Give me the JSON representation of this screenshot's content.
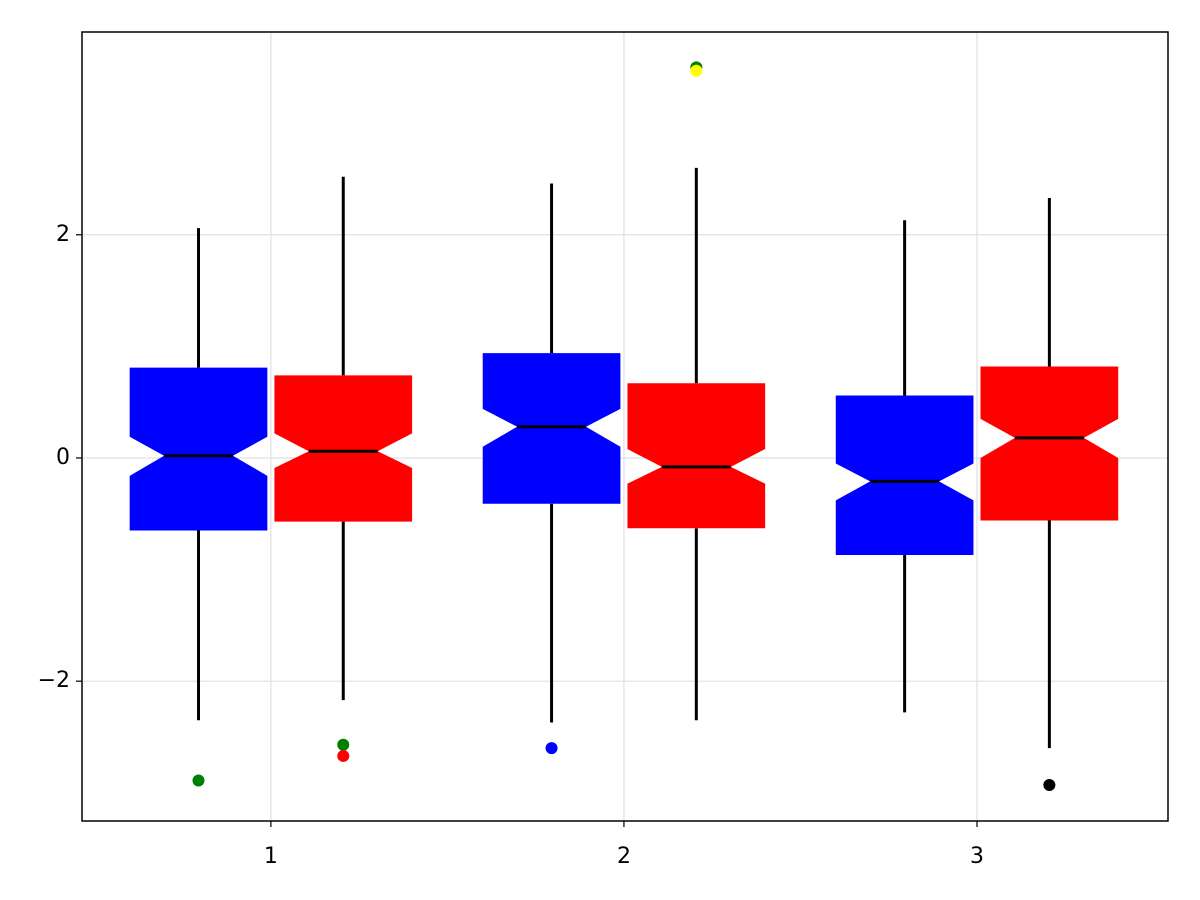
{
  "chart_data": {
    "type": "boxplot",
    "xlim": [
      0.465,
      3.541
    ],
    "ylim": [
      -3.253,
      3.817
    ],
    "xticks": [
      1,
      2,
      3
    ],
    "yticks": [
      {
        "value": -2,
        "label": "−2"
      },
      0,
      2
    ],
    "grid": true,
    "notch": true,
    "series": [
      {
        "color": "#0000ff",
        "x": [
          1,
          2,
          3
        ],
        "whislo": [
          -2.35,
          -2.37,
          -2.28
        ],
        "q1": [
          -0.65,
          -0.41,
          -0.87
        ],
        "med": [
          0.02,
          0.28,
          -0.21
        ],
        "q3": [
          0.81,
          0.94,
          0.56
        ],
        "whishi": [
          2.06,
          2.46,
          2.13
        ],
        "notchlo": [
          -0.16,
          0.1,
          -0.38
        ],
        "notchhi": [
          0.19,
          0.44,
          -0.05
        ],
        "outliers": [
          [
            {
              "value": -2.89,
              "color": "#008000"
            }
          ],
          [
            {
              "value": -2.6,
              "color": "#0000ff"
            }
          ],
          []
        ]
      },
      {
        "color": "#ff0000",
        "x": [
          1,
          2,
          3
        ],
        "whislo": [
          -2.17,
          -2.35,
          -2.6
        ],
        "q1": [
          -0.57,
          -0.63,
          -0.56
        ],
        "med": [
          0.06,
          -0.08,
          0.18
        ],
        "q3": [
          0.74,
          0.67,
          0.82
        ],
        "whishi": [
          2.52,
          2.6,
          2.33
        ],
        "notchlo": [
          -0.09,
          -0.23,
          0.0
        ],
        "notchhi": [
          0.22,
          0.08,
          0.35
        ],
        "outliers": [
          [
            {
              "value": -2.57,
              "color": "#008000"
            },
            {
              "value": -2.67,
              "color": "#ff0000"
            }
          ],
          [
            {
              "value": 3.5,
              "color": "#008000"
            },
            {
              "value": 3.47,
              "color": "#ffff00"
            }
          ],
          [
            {
              "value": -2.93,
              "color": "#000000"
            }
          ]
        ]
      }
    ]
  }
}
